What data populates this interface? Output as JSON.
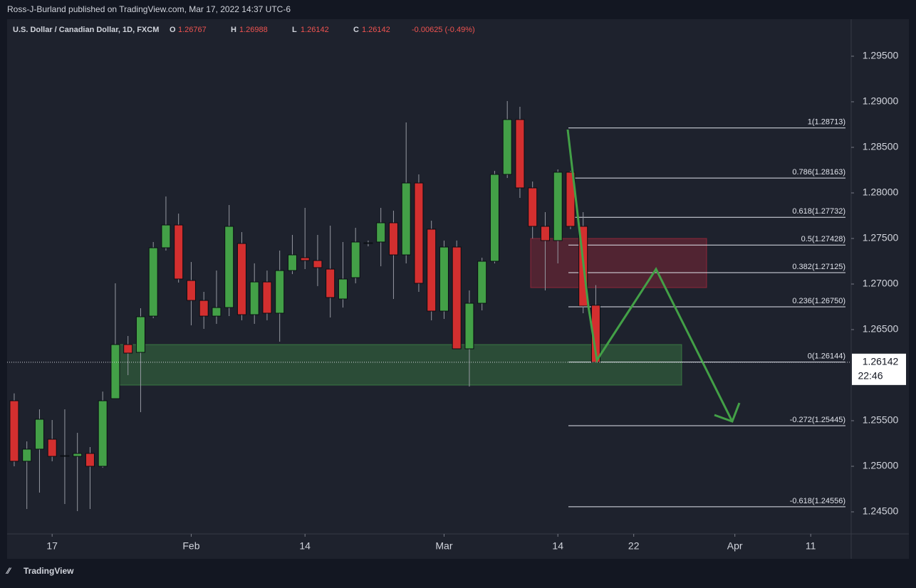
{
  "header": {
    "byline": "Ross-J-Burland published on TradingView.com, Mar 17, 2022 14:37 UTC-6",
    "brand": "TradingView"
  },
  "chart_data": {
    "type": "candlestick",
    "title": "U.S. Dollar / Canadian Dollar, 1D, FXCM",
    "legend_values": [
      {
        "label": "O",
        "value": "1.26767"
      },
      {
        "label": "H",
        "value": "1.26988"
      },
      {
        "label": "L",
        "value": "1.26142"
      },
      {
        "label": "C",
        "value": "1.26142"
      }
    ],
    "change": "-0.00625 (-0.49%)",
    "up_color": "#43a047",
    "down_color": "#d32f2f",
    "open": [
      1.25719,
      1.25055,
      1.25188,
      1.25297,
      1.25109,
      1.25109,
      1.25141,
      1.25,
      1.25742,
      1.26336,
      1.2625,
      1.26648,
      1.27398,
      1.27648,
      1.27039,
      1.2682,
      1.26648,
      1.26742,
      1.27445,
      1.26664,
      1.27023,
      1.2668,
      1.27148,
      1.27289,
      1.27258,
      1.27164,
      1.26836,
      1.2707,
      1.27445,
      1.27461,
      1.27672,
      1.2732,
      1.28109,
      1.27602,
      1.26703,
      1.27406,
      1.26289,
      1.26789,
      1.2725,
      1.28203,
      1.28805,
      1.28055,
      1.27633,
      1.27477,
      1.28227,
      1.27633,
      1.26767
    ],
    "high": [
      1.258,
      1.25273,
      1.25625,
      1.25508,
      1.25625,
      1.25367,
      1.25211,
      1.2582,
      1.27008,
      1.2643,
      1.26734,
      1.27461,
      1.27961,
      1.27773,
      1.27242,
      1.26914,
      1.27148,
      1.27867,
      1.2757,
      1.27227,
      1.27148,
      1.27367,
      1.27539,
      1.27836,
      1.27539,
      1.27641,
      1.27461,
      1.27617,
      1.27477,
      1.27836,
      1.27805,
      1.28773,
      1.28203,
      1.27695,
      1.27477,
      1.27477,
      1.2693,
      1.27289,
      1.28242,
      1.29008,
      1.28945,
      1.28125,
      1.27789,
      1.28258,
      1.28242,
      1.27789,
      1.26988
    ],
    "low": [
      1.25,
      1.24531,
      1.24711,
      1.25055,
      1.24586,
      1.24508,
      1.24531,
      1.24984,
      1.25742,
      1.26,
      1.25594,
      1.26625,
      1.27367,
      1.27016,
      1.26547,
      1.26508,
      1.26563,
      1.26648,
      1.26602,
      1.26563,
      1.26602,
      1.26367,
      1.27109,
      1.27164,
      1.26977,
      1.26633,
      1.26742,
      1.27008,
      1.27414,
      1.27195,
      1.26836,
      1.27227,
      1.26914,
      1.26602,
      1.26617,
      1.26289,
      1.25875,
      1.26711,
      1.27227,
      1.28164,
      1.27945,
      1.275,
      1.2693,
      1.27227,
      1.27602,
      1.2668,
      1.26142
    ],
    "close": [
      1.25055,
      1.25188,
      1.25516,
      1.25109,
      1.25117,
      1.25141,
      1.25,
      1.25719,
      1.26336,
      1.26242,
      1.26641,
      1.27398,
      1.27648,
      1.27055,
      1.2682,
      1.26648,
      1.26742,
      1.27633,
      1.26664,
      1.27023,
      1.2668,
      1.27148,
      1.2732,
      1.27258,
      1.2718,
      1.26852,
      1.27055,
      1.27461,
      1.27453,
      1.27672,
      1.2732,
      1.28109,
      1.27008,
      1.26703,
      1.27406,
      1.26289,
      1.26789,
      1.2725,
      1.28203,
      1.28805,
      1.28055,
      1.27633,
      1.27477,
      1.28227,
      1.27633,
      1.26758,
      1.26142
    ],
    "xlim": [
      -0.56,
      66.2
    ],
    "xticks": [
      {
        "value": 3,
        "label": "17"
      },
      {
        "value": 14,
        "label": "Feb"
      },
      {
        "value": 23,
        "label": "14"
      },
      {
        "value": 34,
        "label": "Mar"
      },
      {
        "value": 43,
        "label": "14"
      },
      {
        "value": 49,
        "label": "22"
      },
      {
        "value": 57,
        "label": "Apr"
      },
      {
        "value": 63,
        "label": "11"
      }
    ],
    "ylim": [
      1.24258,
      1.29906
    ],
    "yticks": [
      {
        "value": 1.245,
        "label": "1.24500"
      },
      {
        "value": 1.25,
        "label": "1.25000"
      },
      {
        "value": 1.255,
        "label": "1.25500"
      },
      {
        "value": 1.265,
        "label": "1.26500"
      },
      {
        "value": 1.27,
        "label": "1.27000"
      },
      {
        "value": 1.275,
        "label": "1.27500"
      },
      {
        "value": 1.28,
        "label": "1.28000"
      },
      {
        "value": 1.285,
        "label": "1.28500"
      },
      {
        "value": 1.29,
        "label": "1.29000"
      },
      {
        "value": 1.295,
        "label": "1.29500"
      }
    ],
    "last_price": {
      "value": 1.26142,
      "label": "1.26142",
      "countdown": "22:46"
    },
    "fib_levels": [
      {
        "value": 1.28713,
        "label": "1(1.28713)"
      },
      {
        "value": 1.28163,
        "label": "0.786(1.28163)"
      },
      {
        "value": 1.27732,
        "label": "0.618(1.27732)"
      },
      {
        "value": 1.27428,
        "label": "0.5(1.27428)"
      },
      {
        "value": 1.27125,
        "label": "0.382(1.27125)"
      },
      {
        "value": 1.2675,
        "label": "0.236(1.26750)"
      },
      {
        "value": 1.26144,
        "label": "0(1.26144)"
      },
      {
        "value": 1.25445,
        "label": "-0.272(1.25445)"
      },
      {
        "value": 1.24556,
        "label": "-0.618(1.24556)"
      }
    ]
  }
}
